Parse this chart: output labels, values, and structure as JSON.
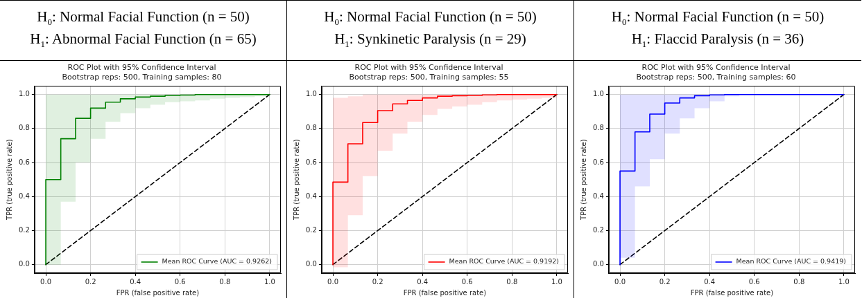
{
  "chart_data": [
    {
      "type": "step",
      "title": "H$_{0}$: Normal Facial Function (n = 50)\nH$_{1}$: Abnormal Facial Function (n = 65)",
      "subtitle": "ROC Plot with 95% Confidence Interval\nBootstrap reps: 500, Training samples: 80",
      "xlabel": "FPR (false positive rate)",
      "ylabel": "TPR (true positive rate)",
      "series": [
        {
          "name": "Mean ROC Curve (AUC = 0.9262)",
          "color": "#008000",
          "type": "step",
          "x": [
            0,
            0,
            0.067,
            0.133,
            0.2,
            0.267,
            0.333,
            0.4,
            0.467,
            0.533,
            0.6,
            0.667,
            0.733,
            0.8,
            0.867,
            0.933,
            1
          ],
          "values": [
            0,
            0.5,
            0.74,
            0.86,
            0.92,
            0.955,
            0.975,
            0.985,
            0.99,
            0.995,
            0.997,
            1,
            1,
            1,
            1,
            1,
            1
          ],
          "lower": [
            0,
            0,
            0.37,
            0.6,
            0.74,
            0.84,
            0.89,
            0.92,
            0.94,
            0.955,
            0.96,
            0.965,
            0.975,
            0.98,
            0.985,
            0.99,
            1
          ],
          "upper": [
            1,
            1,
            1,
            1,
            1,
            1,
            1,
            1,
            1,
            1,
            1,
            1,
            1,
            1,
            1,
            1,
            1
          ]
        },
        {
          "type": "line",
          "color": "#000000",
          "line_style": "dashed",
          "x": [
            0,
            1
          ],
          "values": [
            0,
            1
          ]
        }
      ],
      "xlim": [
        -0.05,
        1.05
      ],
      "ylim": [
        -0.05,
        1.05
      ],
      "xticks": [
        {
          "value": 0,
          "label": "0.0"
        },
        {
          "value": 0.2,
          "label": "0.2"
        },
        {
          "value": 0.4,
          "label": "0.4"
        },
        {
          "value": 0.6,
          "label": "0.6"
        },
        {
          "value": 0.8,
          "label": "0.8"
        },
        {
          "value": 1,
          "label": "1.0"
        }
      ],
      "yticks": [
        {
          "value": 0,
          "label": "0.0"
        },
        {
          "value": 0.2,
          "label": "0.2"
        },
        {
          "value": 0.4,
          "label": "0.4"
        },
        {
          "value": 0.6,
          "label": "0.6"
        },
        {
          "value": 0.8,
          "label": "0.8"
        },
        {
          "value": 1,
          "label": "1.0"
        }
      ],
      "grid": true,
      "legend": "bottom right",
      "marker": "none"
    },
    {
      "type": "step",
      "title": "H$_{0}$: Normal Facial Function (n = 50)\nH$_{1}$: Synkinetic Paralysis (n = 29)",
      "subtitle": "ROC Plot with 95% Confidence Interval\nBootstrap reps: 500, Training samples: 55",
      "xlabel": "FPR (false positive rate)",
      "ylabel": "TPR (true positive rate)",
      "series": [
        {
          "name": "Mean ROC Curve (AUC = 0.9192)",
          "color": "#ff0000",
          "type": "step",
          "x": [
            0,
            0,
            0.067,
            0.133,
            0.2,
            0.267,
            0.333,
            0.4,
            0.467,
            0.533,
            0.6,
            0.667,
            0.733,
            0.8,
            0.867,
            0.933,
            1
          ],
          "values": [
            0,
            0.485,
            0.71,
            0.835,
            0.905,
            0.945,
            0.965,
            0.98,
            0.99,
            0.993,
            0.995,
            0.998,
            1,
            1,
            1,
            1,
            1
          ],
          "lower": [
            -0.015,
            -0.015,
            0.29,
            0.52,
            0.67,
            0.77,
            0.84,
            0.88,
            0.915,
            0.93,
            0.94,
            0.955,
            0.965,
            0.97,
            0.975,
            0.98,
            0.98
          ],
          "upper": [
            0.98,
            0.98,
            0.99,
            1,
            1,
            1,
            1,
            1,
            1,
            1,
            1,
            1,
            1,
            1,
            1,
            1,
            1
          ]
        },
        {
          "type": "line",
          "color": "#000000",
          "line_style": "dashed",
          "x": [
            0,
            1
          ],
          "values": [
            0,
            1
          ]
        }
      ],
      "xlim": [
        -0.05,
        1.05
      ],
      "ylim": [
        -0.05,
        1.05
      ],
      "xticks": [
        {
          "value": 0,
          "label": "0.0"
        },
        {
          "value": 0.2,
          "label": "0.2"
        },
        {
          "value": 0.4,
          "label": "0.4"
        },
        {
          "value": 0.6,
          "label": "0.6"
        },
        {
          "value": 0.8,
          "label": "0.8"
        },
        {
          "value": 1,
          "label": "1.0"
        }
      ],
      "yticks": [
        {
          "value": 0,
          "label": "0.0"
        },
        {
          "value": 0.2,
          "label": "0.2"
        },
        {
          "value": 0.4,
          "label": "0.4"
        },
        {
          "value": 0.6,
          "label": "0.6"
        },
        {
          "value": 0.8,
          "label": "0.8"
        },
        {
          "value": 1,
          "label": "1.0"
        }
      ],
      "grid": true,
      "legend": "bottom right",
      "marker": "none"
    },
    {
      "type": "step",
      "title": "H$_{0}$: Normal Facial Function (n = 50)\nH$_{1}$: Flaccid Paralysis (n = 36)",
      "subtitle": "ROC Plot with 95% Confidence Interval\nBootstrap reps: 500, Training samples: 60",
      "xlabel": "FPR (false positive rate)",
      "ylabel": "TPR (true positive rate)",
      "series": [
        {
          "name": "Mean ROC Curve (AUC = 0.9419)",
          "color": "#0000ff",
          "type": "step",
          "x": [
            0,
            0,
            0.067,
            0.133,
            0.2,
            0.267,
            0.333,
            0.4,
            0.467,
            0.533,
            0.6,
            0.667,
            0.733,
            0.8,
            0.867,
            0.933,
            1
          ],
          "values": [
            0,
            0.55,
            0.78,
            0.885,
            0.95,
            0.98,
            0.993,
            0.998,
            1,
            1,
            1,
            1,
            1,
            1,
            1,
            1,
            1
          ],
          "lower": [
            0.04,
            0.04,
            0.46,
            0.62,
            0.77,
            0.86,
            0.92,
            0.96,
            0.99,
            1,
            1,
            1,
            1,
            1,
            1,
            1,
            1
          ],
          "upper": [
            1,
            1,
            1,
            1,
            1,
            1,
            1,
            1,
            1,
            1,
            1,
            1,
            1,
            1,
            1,
            1,
            1
          ]
        },
        {
          "type": "line",
          "color": "#000000",
          "line_style": "dashed",
          "x": [
            0,
            1
          ],
          "values": [
            0,
            1
          ]
        }
      ],
      "xlim": [
        -0.05,
        1.05
      ],
      "ylim": [
        -0.05,
        1.05
      ],
      "xticks": [
        {
          "value": 0,
          "label": "0.0"
        },
        {
          "value": 0.2,
          "label": "0.2"
        },
        {
          "value": 0.4,
          "label": "0.4"
        },
        {
          "value": 0.6,
          "label": "0.6"
        },
        {
          "value": 0.8,
          "label": "0.8"
        },
        {
          "value": 1,
          "label": "1.0"
        }
      ],
      "yticks": [
        {
          "value": 0,
          "label": "0.0"
        },
        {
          "value": 0.2,
          "label": "0.2"
        },
        {
          "value": 0.4,
          "label": "0.4"
        },
        {
          "value": 0.6,
          "label": "0.6"
        },
        {
          "value": 0.8,
          "label": "0.8"
        },
        {
          "value": 1,
          "label": "1.0"
        }
      ],
      "grid": true,
      "legend": "bottom right",
      "marker": "none"
    }
  ]
}
